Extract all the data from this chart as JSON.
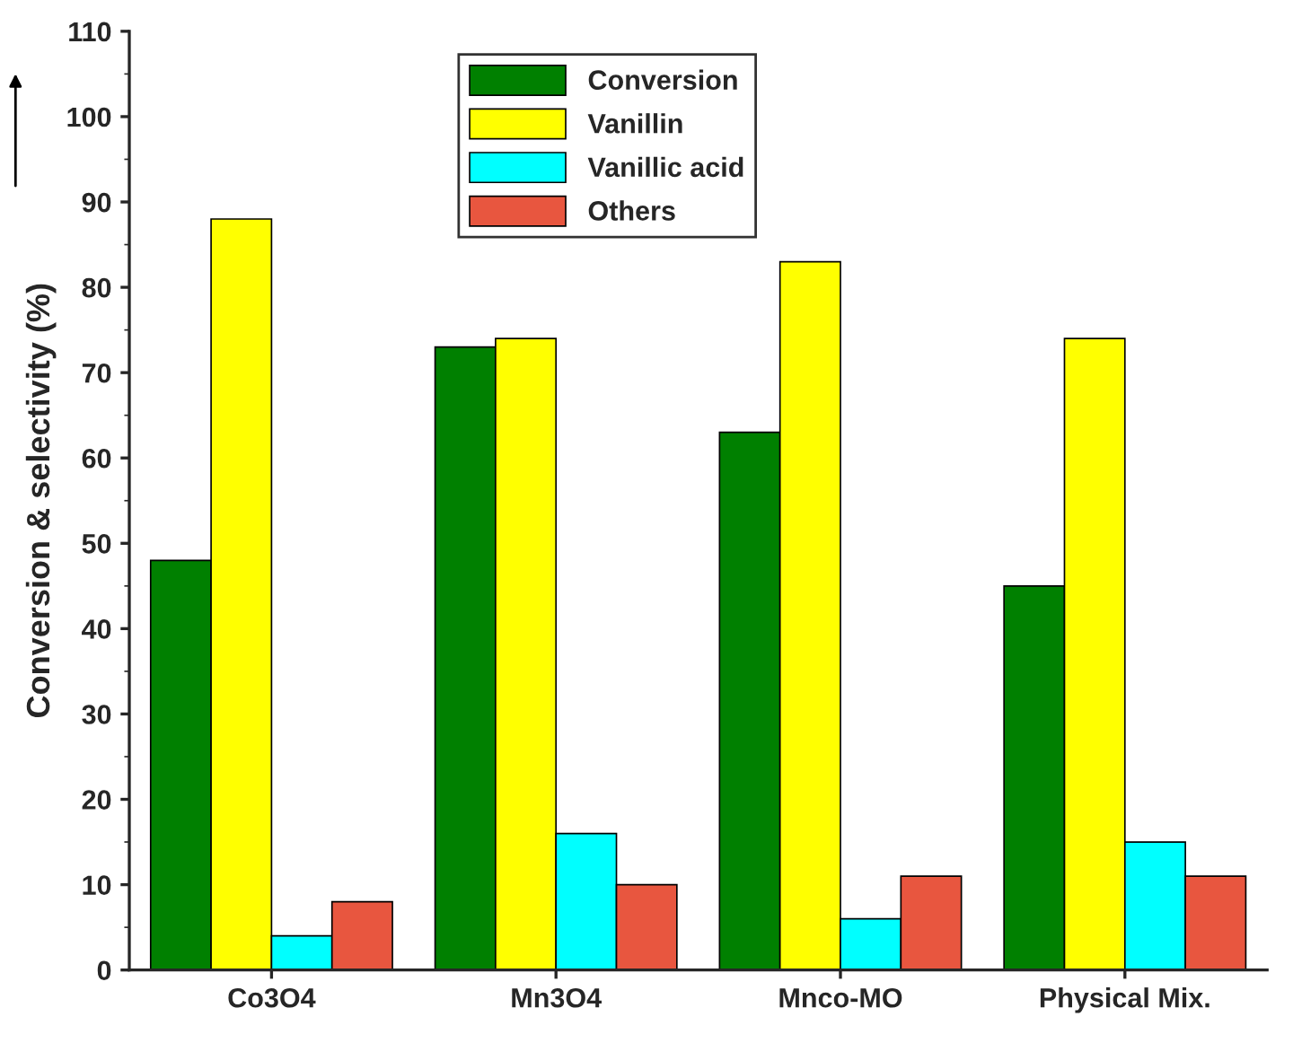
{
  "chart_data": {
    "type": "bar",
    "ylabel": "Conversion & selectivity (%)",
    "categories": [
      "Co3O4",
      "Mn3O4",
      "Mnco-MO",
      "Physical Mix."
    ],
    "series": [
      {
        "name": "Conversion",
        "color": "#008000",
        "values": [
          48,
          73,
          63,
          45
        ]
      },
      {
        "name": "Vanillin",
        "color": "#ffff00",
        "values": [
          88,
          74,
          83,
          74
        ]
      },
      {
        "name": "Vanillic acid",
        "color": "#00ffff",
        "values": [
          4,
          16,
          6,
          15
        ]
      },
      {
        "name": "Others",
        "color": "#e8563f",
        "values": [
          8,
          10,
          11,
          11
        ]
      }
    ],
    "ylim": [
      0,
      110
    ],
    "yticks": [
      0,
      10,
      20,
      30,
      40,
      50,
      60,
      70,
      80,
      90,
      100,
      110
    ],
    "grid": false,
    "legend": "top"
  }
}
